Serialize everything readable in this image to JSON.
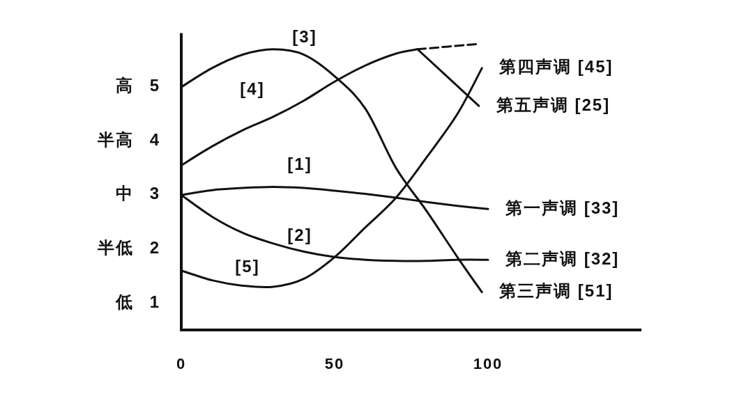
{
  "chart_data": {
    "type": "line",
    "xlim": [
      0,
      150
    ],
    "xticks": [
      0,
      50,
      100
    ],
    "ylim": [
      0.5,
      6
    ],
    "yticks": [
      1,
      2,
      3,
      4,
      5
    ],
    "grid": false,
    "marker": "none",
    "line_style": "solid",
    "series": [
      {
        "name": "第一声调 [33]",
        "color": "#111111",
        "x": [
          0,
          10,
          20,
          30,
          40,
          50,
          60,
          70,
          80,
          90,
          100
        ],
        "values": [
          3.0,
          3.09,
          3.13,
          3.15,
          3.13,
          3.08,
          3.02,
          2.95,
          2.87,
          2.8,
          2.74
        ]
      },
      {
        "name": "第二声调 [32]",
        "color": "#111111",
        "x": [
          0,
          10,
          20,
          30,
          40,
          50,
          60,
          70,
          80,
          90,
          100
        ],
        "values": [
          3.0,
          2.6,
          2.3,
          2.1,
          1.95,
          1.85,
          1.8,
          1.78,
          1.78,
          1.8,
          1.8
        ]
      },
      {
        "name": "第三声调 [51]",
        "color": "#111111",
        "x": [
          0,
          10,
          20,
          30,
          40,
          50,
          60,
          70,
          80,
          90,
          98
        ],
        "values": [
          5.0,
          5.35,
          5.6,
          5.7,
          5.6,
          5.2,
          4.6,
          3.5,
          2.7,
          1.85,
          1.2
        ]
      },
      {
        "color": "#111111",
        "x": [
          0,
          10,
          20,
          30,
          40,
          50,
          60,
          70,
          77
        ],
        "values": [
          3.55,
          3.9,
          4.2,
          4.45,
          4.75,
          5.1,
          5.4,
          5.62,
          5.7
        ]
      },
      {
        "name": "第五声调 [25]",
        "color": "#111111",
        "x": [
          77,
          97
        ],
        "values": [
          5.7,
          4.65
        ]
      },
      {
        "color": "#111111",
        "x": [
          77,
          97
        ],
        "values": [
          5.7,
          5.8
        ],
        "line_style": "dashed"
      },
      {
        "name": "第四声调 [45]",
        "color": "#111111",
        "x": [
          0,
          10,
          20,
          30,
          40,
          50,
          60,
          70,
          80,
          90,
          98
        ],
        "values": [
          1.6,
          1.42,
          1.32,
          1.3,
          1.45,
          1.85,
          2.4,
          2.95,
          3.7,
          4.5,
          5.35
        ]
      }
    ],
    "annotations": [
      "[1]",
      "[2]",
      "[3]",
      "[4]",
      "[5]",
      "低",
      "半低",
      "中",
      "半高",
      "高"
    ]
  }
}
